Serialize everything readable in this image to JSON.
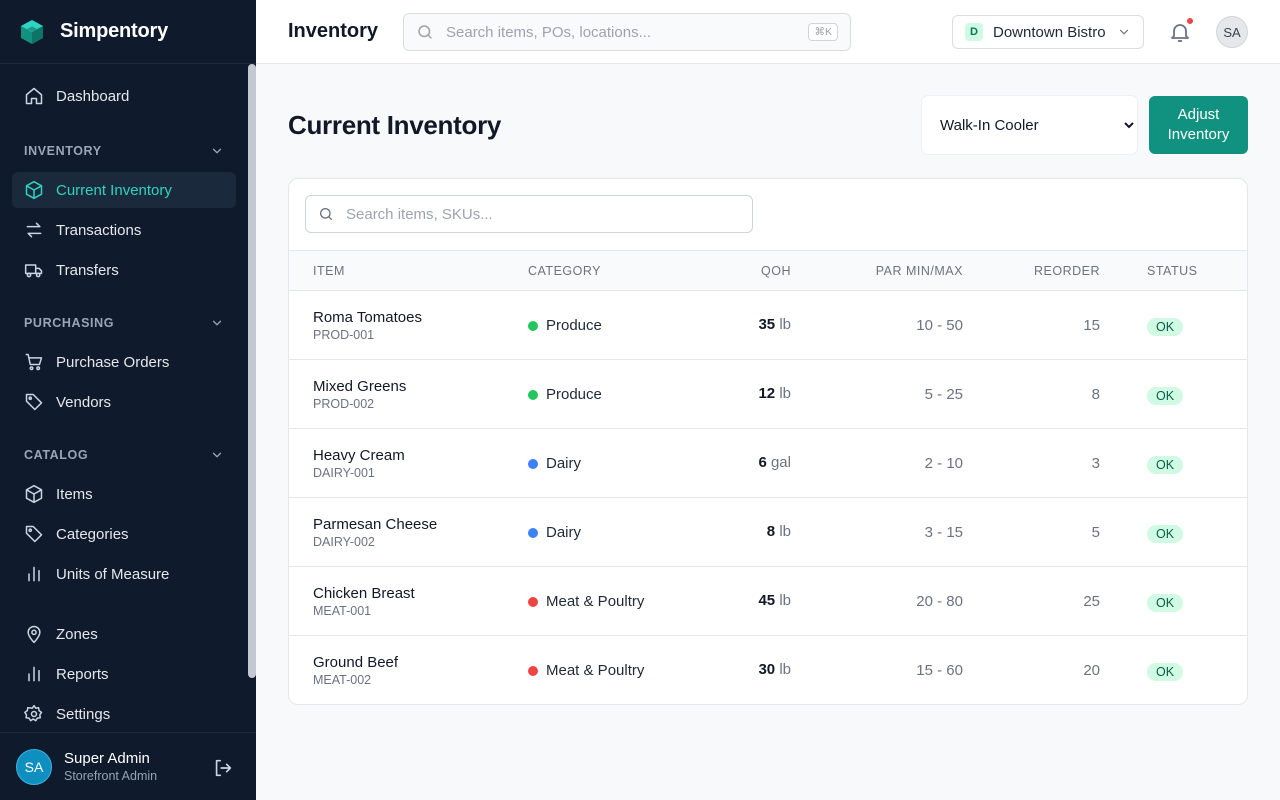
{
  "app": {
    "name": "Simpentory"
  },
  "sidebar": {
    "dashboard": "Dashboard",
    "sections": {
      "inventory": "INVENTORY",
      "purchasing": "PURCHASING",
      "catalog": "CATALOG"
    },
    "items": {
      "current_inventory": "Current Inventory",
      "transactions": "Transactions",
      "transfers": "Transfers",
      "purchase_orders": "Purchase Orders",
      "vendors": "Vendors",
      "items": "Items",
      "categories": "Categories",
      "units": "Units of Measure",
      "zones": "Zones",
      "reports": "Reports",
      "settings": "Settings"
    },
    "user": {
      "initials": "SA",
      "name": "Super Admin",
      "role": "Storefront Admin"
    }
  },
  "header": {
    "title": "Inventory",
    "search_placeholder": "Search items, POs, locations...",
    "shortcut": "⌘K",
    "location": {
      "initial": "D",
      "name": "Downtown Bistro"
    },
    "avatar": "SA"
  },
  "main": {
    "title": "Current Inventory",
    "zone_selected": "Walk-In Cooler",
    "adjust_button": "Adjust Inventory",
    "table_search_placeholder": "Search items, SKUs...",
    "columns": {
      "item": "ITEM",
      "category": "CATEGORY",
      "qoh": "QOH",
      "par": "PAR MIN/MAX",
      "reorder": "REORDER",
      "status": "STATUS"
    },
    "rows": [
      {
        "name": "Roma Tomatoes",
        "sku": "PROD-001",
        "category": "Produce",
        "cat_color": "#22c55e",
        "qoh": "35",
        "unit": "lb",
        "par": "10 - 50",
        "reorder": "15",
        "status": "OK"
      },
      {
        "name": "Mixed Greens",
        "sku": "PROD-002",
        "category": "Produce",
        "cat_color": "#22c55e",
        "qoh": "12",
        "unit": "lb",
        "par": "5 - 25",
        "reorder": "8",
        "status": "OK"
      },
      {
        "name": "Heavy Cream",
        "sku": "DAIRY-001",
        "category": "Dairy",
        "cat_color": "#3b82f6",
        "qoh": "6",
        "unit": "gal",
        "par": "2 - 10",
        "reorder": "3",
        "status": "OK"
      },
      {
        "name": "Parmesan Cheese",
        "sku": "DAIRY-002",
        "category": "Dairy",
        "cat_color": "#3b82f6",
        "qoh": "8",
        "unit": "lb",
        "par": "3 - 15",
        "reorder": "5",
        "status": "OK"
      },
      {
        "name": "Chicken Breast",
        "sku": "MEAT-001",
        "category": "Meat & Poultry",
        "cat_color": "#ef4444",
        "qoh": "45",
        "unit": "lb",
        "par": "20 - 80",
        "reorder": "25",
        "status": "OK"
      },
      {
        "name": "Ground Beef",
        "sku": "MEAT-002",
        "category": "Meat & Poultry",
        "cat_color": "#ef4444",
        "qoh": "30",
        "unit": "lb",
        "par": "15 - 60",
        "reorder": "20",
        "status": "OK"
      }
    ]
  },
  "colors": {
    "accent": "#11917f",
    "active_text": "#2dd4bf",
    "sidebar_bg": "#0f1b2d",
    "notification": "#ef4444"
  },
  "icons": [
    "logo-cube-icon",
    "home-icon",
    "chevron-down-icon",
    "box-icon",
    "arrows-swap-icon",
    "truck-icon",
    "cart-icon",
    "tag-icon",
    "bar-chart-icon",
    "map-pin-icon",
    "gear-icon",
    "logout-icon",
    "search-icon",
    "bell-icon"
  ]
}
